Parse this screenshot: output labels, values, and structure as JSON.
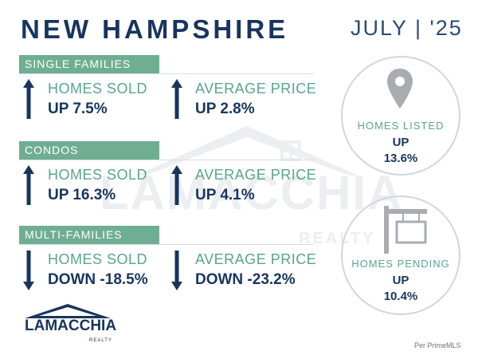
{
  "header": {
    "title": "NEW HAMPSHIRE",
    "date": "JULY | '25"
  },
  "watermark": {
    "brand": "LAMACCHIA",
    "sub": "REALTY"
  },
  "sections": [
    {
      "label": "SINGLE FAMILIES",
      "homes_sold": {
        "label": "HOMES SOLD",
        "value": "UP 7.5%",
        "direction": "up"
      },
      "average_price": {
        "label": "AVERAGE PRICE",
        "value": "UP 2.8%",
        "direction": "up"
      }
    },
    {
      "label": "CONDOS",
      "homes_sold": {
        "label": "HOMES SOLD",
        "value": "UP 16.3%",
        "direction": "up"
      },
      "average_price": {
        "label": "AVERAGE PRICE",
        "value": "UP 4.1%",
        "direction": "up"
      }
    },
    {
      "label": "MULTI-FAMILIES",
      "homes_sold": {
        "label": "HOMES SOLD",
        "value": "DOWN -18.5%",
        "direction": "down"
      },
      "average_price": {
        "label": "AVERAGE PRICE",
        "value": "DOWN -23.2%",
        "direction": "down"
      }
    }
  ],
  "homes_listed": {
    "label": "HOMES LISTED",
    "direction": "UP",
    "percent": "13.6%",
    "icon": "map-pin-icon"
  },
  "homes_pending": {
    "label": "HOMES PENDING",
    "direction": "UP",
    "percent": "10.4%",
    "icon": "sale-sign-icon"
  },
  "logo": {
    "text": "LAMACCHIA",
    "sub": "REALTY"
  },
  "source": "Per PrimeMLS",
  "colors": {
    "navy": "#17355e",
    "green": "#6fae92",
    "green_text": "#58a688",
    "circle_border": "#d2d6db",
    "icon_gray": "#a9adb2"
  }
}
